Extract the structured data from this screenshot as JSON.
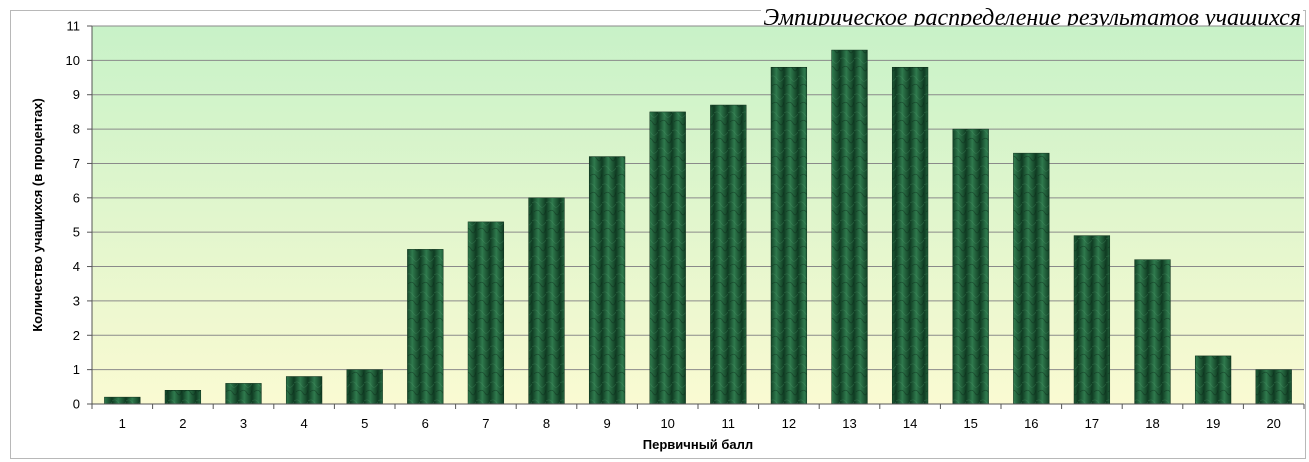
{
  "chart_data": {
    "type": "bar",
    "title": "Эмпирическое распределение результатов учащихся",
    "xlabel": "Первичный балл",
    "ylabel": "Количество учащихся (в процентах)",
    "categories": [
      "1",
      "2",
      "3",
      "4",
      "5",
      "6",
      "7",
      "8",
      "9",
      "10",
      "11",
      "12",
      "13",
      "14",
      "15",
      "16",
      "17",
      "18",
      "19",
      "20"
    ],
    "values": [
      0.2,
      0.4,
      0.6,
      0.8,
      1.0,
      4.5,
      5.3,
      6.0,
      7.2,
      8.5,
      8.7,
      9.8,
      10.3,
      9.8,
      8.0,
      7.3,
      4.9,
      4.2,
      1.4,
      1.0
    ],
    "ylim": [
      0,
      11
    ],
    "yticks": [
      0,
      1,
      2,
      3,
      4,
      5,
      6,
      7,
      8,
      9,
      10,
      11
    ],
    "grid": true,
    "legend": "none",
    "colors": {
      "bar_fill": "#1e5a35",
      "bar_dark": "#0f3b22",
      "bar_light": "#2f7a4d",
      "plot_top": "#c8f2c8",
      "plot_bottom": "#fafad2",
      "gridline": "#8a8a8a"
    }
  }
}
